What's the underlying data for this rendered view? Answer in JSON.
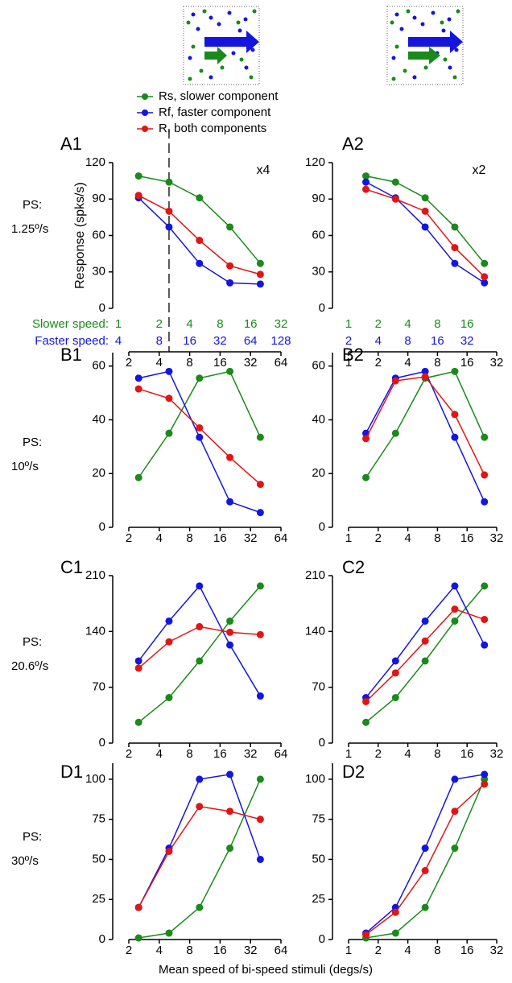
{
  "legend": [
    {
      "name": "Rs, slower component",
      "color": "#1a8a1a"
    },
    {
      "name": "Rf, faster component",
      "color": "#1515e0"
    },
    {
      "name": "R,  both components",
      "color": "#e01515"
    }
  ],
  "row_labels": [
    {
      "prefix": "PS:",
      "speed": "1.25º/s"
    },
    {
      "prefix": "PS:",
      "speed": "10º/s"
    },
    {
      "prefix": "PS:",
      "speed": "20.6º/s"
    },
    {
      "prefix": "PS:",
      "speed": "30º/s"
    }
  ],
  "xlabel": "Mean speed of bi-speed stimuli (degs/s)",
  "chart_data": [
    {
      "type": "line",
      "title": "A1",
      "ylabel": "Response (spks/s)",
      "annotation": "x4",
      "vline": 5,
      "xlog": true,
      "x": [
        2.5,
        5,
        10,
        20,
        40
      ],
      "xlim": [
        2,
        64
      ],
      "xticks": [
        2,
        4,
        8,
        16,
        32,
        64
      ],
      "ylim": [
        0,
        120
      ],
      "yticks": [
        0,
        30,
        60,
        90,
        120
      ],
      "speed_rows": [
        {
          "label": "Slower speed:",
          "color": "#1a8a1a",
          "values": [
            1,
            2,
            4,
            8,
            16,
            32
          ]
        },
        {
          "label": "Faster speed:",
          "color": "#1515e0",
          "values": [
            4,
            8,
            16,
            32,
            64,
            128
          ]
        }
      ],
      "series": [
        {
          "color": "#1a8a1a",
          "values": [
            109,
            104,
            91,
            67,
            37
          ]
        },
        {
          "color": "#1515e0",
          "values": [
            91,
            67,
            37,
            21,
            20
          ]
        },
        {
          "color": "#e01515",
          "values": [
            93,
            80,
            56,
            35,
            28
          ]
        }
      ]
    },
    {
      "type": "line",
      "title": "A2",
      "annotation": "x2",
      "xlog": true,
      "x": [
        1.5,
        3,
        6,
        12,
        24
      ],
      "xlim": [
        1,
        32
      ],
      "xticks": [
        1,
        2,
        4,
        8,
        16,
        32
      ],
      "ylim": [
        0,
        120
      ],
      "yticks": [
        0,
        30,
        60,
        90,
        120
      ],
      "speed_rows": [
        {
          "color": "#1a8a1a",
          "values": [
            1,
            2,
            4,
            8,
            16
          ]
        },
        {
          "color": "#1515e0",
          "values": [
            2,
            4,
            8,
            16,
            32
          ]
        }
      ],
      "series": [
        {
          "color": "#1a8a1a",
          "values": [
            109,
            104,
            91,
            67,
            37
          ]
        },
        {
          "color": "#1515e0",
          "values": [
            104,
            91,
            67,
            37,
            21
          ]
        },
        {
          "color": "#e01515",
          "values": [
            98,
            90,
            80,
            50,
            26
          ]
        }
      ]
    },
    {
      "type": "line",
      "title": "B1",
      "xlog": true,
      "x": [
        2.5,
        5,
        10,
        20,
        40
      ],
      "xlim": [
        2,
        64
      ],
      "xticks": [
        2,
        4,
        8,
        16,
        32,
        64
      ],
      "ylim": [
        0,
        65
      ],
      "yticks": [
        0,
        20,
        40,
        60
      ],
      "series": [
        {
          "color": "#1a8a1a",
          "values": [
            18.5,
            35,
            55.5,
            58,
            33.5
          ]
        },
        {
          "color": "#1515e0",
          "values": [
            55.5,
            58,
            33.5,
            9.5,
            5.5
          ]
        },
        {
          "color": "#e01515",
          "values": [
            51.5,
            48,
            37,
            26,
            16
          ]
        }
      ]
    },
    {
      "type": "line",
      "title": "B2",
      "xlog": true,
      "x": [
        1.5,
        3,
        6,
        12,
        24
      ],
      "xlim": [
        1,
        32
      ],
      "xticks": [
        1,
        2,
        4,
        8,
        16,
        32
      ],
      "ylim": [
        0,
        65
      ],
      "yticks": [
        0,
        20,
        40,
        60
      ],
      "series": [
        {
          "color": "#1a8a1a",
          "values": [
            18.5,
            35,
            55.5,
            58,
            33.5
          ]
        },
        {
          "color": "#1515e0",
          "values": [
            35,
            55.5,
            58,
            33.5,
            9.5
          ]
        },
        {
          "color": "#e01515",
          "values": [
            33,
            54.5,
            56,
            42,
            19.5
          ]
        }
      ]
    },
    {
      "type": "line",
      "title": "C1",
      "xlog": true,
      "x": [
        2.5,
        5,
        10,
        20,
        40
      ],
      "xlim": [
        2,
        64
      ],
      "xticks": [
        2,
        4,
        8,
        16,
        32,
        64
      ],
      "ylim": [
        0,
        210
      ],
      "yticks": [
        0,
        70,
        140,
        210
      ],
      "series": [
        {
          "color": "#1a8a1a",
          "values": [
            26,
            57,
            103,
            153,
            197
          ]
        },
        {
          "color": "#1515e0",
          "values": [
            103,
            153,
            197,
            123,
            59
          ]
        },
        {
          "color": "#e01515",
          "values": [
            94,
            127,
            146,
            139,
            136
          ]
        }
      ]
    },
    {
      "type": "line",
      "title": "C2",
      "xlog": true,
      "x": [
        1.5,
        3,
        6,
        12,
        24
      ],
      "xlim": [
        1,
        32
      ],
      "xticks": [
        1,
        2,
        4,
        8,
        16,
        32
      ],
      "ylim": [
        0,
        210
      ],
      "yticks": [
        0,
        70,
        140,
        210
      ],
      "series": [
        {
          "color": "#1a8a1a",
          "values": [
            26,
            57,
            103,
            153,
            197
          ]
        },
        {
          "color": "#1515e0",
          "values": [
            57,
            103,
            153,
            197,
            123
          ]
        },
        {
          "color": "#e01515",
          "values": [
            52,
            88,
            128,
            168,
            155
          ]
        }
      ]
    },
    {
      "type": "line",
      "title": "D1",
      "xlog": true,
      "x": [
        2.5,
        5,
        10,
        20,
        40
      ],
      "xlim": [
        2,
        64
      ],
      "xticks": [
        2,
        4,
        8,
        16,
        32,
        64
      ],
      "ylim": [
        0,
        110
      ],
      "yticks": [
        0,
        25,
        50,
        75,
        100
      ],
      "series": [
        {
          "color": "#1a8a1a",
          "values": [
            1,
            4,
            20,
            57,
            100
          ]
        },
        {
          "color": "#1515e0",
          "values": [
            20,
            57,
            100,
            103,
            50
          ]
        },
        {
          "color": "#e01515",
          "values": [
            20,
            55,
            83,
            80,
            75
          ]
        }
      ]
    },
    {
      "type": "line",
      "title": "D2",
      "xlog": true,
      "x": [
        1.5,
        3,
        6,
        12,
        24
      ],
      "xlim": [
        1,
        32
      ],
      "xticks": [
        1,
        2,
        4,
        8,
        16,
        32
      ],
      "ylim": [
        0,
        110
      ],
      "yticks": [
        0,
        25,
        50,
        75,
        100
      ],
      "series": [
        {
          "color": "#1a8a1a",
          "values": [
            1,
            4,
            20,
            57,
            100
          ]
        },
        {
          "color": "#1515e0",
          "values": [
            4,
            20,
            57,
            100,
            103
          ]
        },
        {
          "color": "#e01515",
          "values": [
            3,
            17,
            43,
            80,
            97
          ]
        }
      ]
    }
  ]
}
